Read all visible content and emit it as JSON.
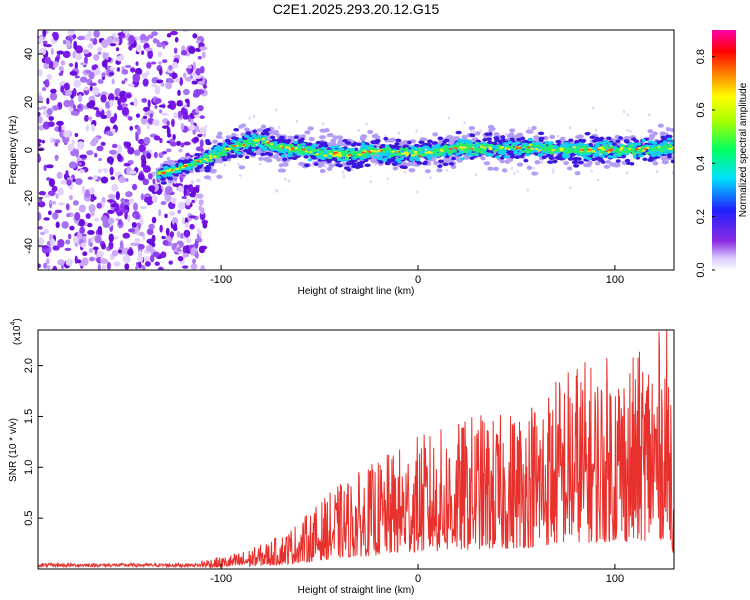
{
  "title": "C2E1.2025.293.20.12.G15",
  "colors": {
    "snr_line": "#e8302c",
    "spectrum_point": "#7a1ae6",
    "axes": "#000000"
  },
  "chart_data": [
    {
      "type": "heatmap",
      "xlabel": "Height of straight line (km)",
      "ylabel": "Frequency (Hz)",
      "xlim": [
        -193,
        130
      ],
      "ylim": [
        -50,
        50
      ],
      "xticks": [
        -100,
        0,
        100
      ],
      "xtick_labels": [
        "-100",
        "0",
        "100"
      ],
      "yticks": [
        -40,
        -20,
        0,
        20,
        40
      ],
      "ytick_labels": [
        "-40",
        "-20",
        "0",
        "20",
        "40"
      ],
      "colorbar": {
        "label": "Normalized spectral amplitude",
        "range": [
          0,
          0.9
        ],
        "ticks": [
          0.0,
          0.2,
          0.4,
          0.6,
          0.8
        ],
        "tick_labels": [
          "0.0",
          "0.2",
          "0.4",
          "0.6",
          "0.8"
        ],
        "colormap": "rainbow (white → violet → blue → cyan → green → yellow → red → magenta)"
      },
      "features": {
        "noise_region_x": [
          -193,
          -108
        ],
        "signal_band": [
          {
            "x": -132,
            "y": -10
          },
          {
            "x": -115,
            "y": -6
          },
          {
            "x": -105,
            "y": -3
          },
          {
            "x": -95,
            "y": 1
          },
          {
            "x": -80,
            "y": 4
          },
          {
            "x": -70,
            "y": 1
          },
          {
            "x": -50,
            "y": -1
          },
          {
            "x": -35,
            "y": -2
          },
          {
            "x": -20,
            "y": 0
          },
          {
            "x": 0,
            "y": -2
          },
          {
            "x": 20,
            "y": 1
          },
          {
            "x": 40,
            "y": 1
          },
          {
            "x": 60,
            "y": 1
          },
          {
            "x": 80,
            "y": 0
          },
          {
            "x": 100,
            "y": 0
          },
          {
            "x": 130,
            "y": 1
          }
        ]
      }
    },
    {
      "type": "line",
      "xlabel": "Height of straight line (km)",
      "ylabel": "SNR (10 * v/v)",
      "y_multiplier_label": "(x10",
      "y_multiplier_exponent": "4",
      "y_multiplier_close": ")",
      "xlim": [
        -193,
        130
      ],
      "ylim": [
        0,
        2.35
      ],
      "xticks": [
        -100,
        0,
        100
      ],
      "xtick_labels": [
        "-100",
        "0",
        "100"
      ],
      "yticks": [
        0.5,
        1.0,
        1.5,
        2.0
      ],
      "ytick_labels": [
        "0.5",
        "1.0",
        "1.5",
        "2.0"
      ],
      "series": [
        {
          "color": "#e8302c",
          "envelope_x": [
            -193,
            -150,
            -120,
            -100,
            -90,
            -80,
            -70,
            -60,
            -50,
            -40,
            -30,
            -20,
            -10,
            0,
            10,
            20,
            30,
            40,
            50,
            60,
            70,
            80,
            90,
            100,
            110,
            120,
            128,
            130
          ],
          "envelope_y": [
            0.04,
            0.05,
            0.07,
            0.1,
            0.14,
            0.2,
            0.28,
            0.4,
            0.55,
            0.7,
            0.8,
            0.9,
            1.0,
            1.1,
            1.15,
            1.2,
            1.3,
            1.25,
            1.35,
            1.45,
            1.6,
            1.75,
            1.7,
            1.8,
            1.75,
            1.95,
            2.0,
            0.8
          ]
        }
      ]
    }
  ]
}
